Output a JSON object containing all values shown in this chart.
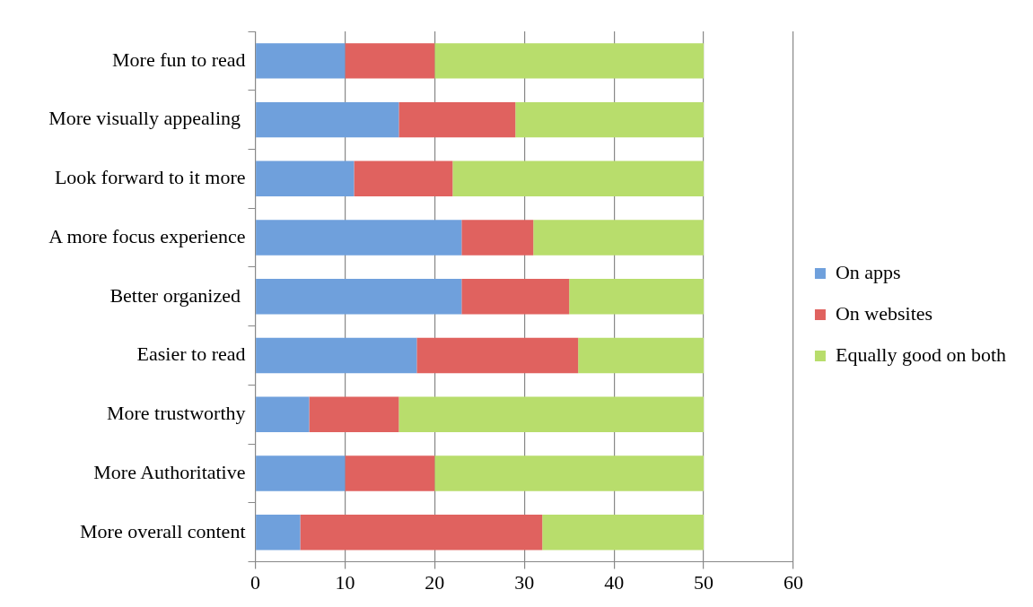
{
  "chart_data": {
    "type": "bar",
    "orientation": "horizontal",
    "stacked": true,
    "categories": [
      "More fun to read",
      "More visually appealing ",
      "Look forward to it more",
      "A more focus experience",
      "Better organized ",
      "Easier to read",
      "More trustworthy",
      "More Authoritative",
      "More overall content"
    ],
    "series": [
      {
        "name": "On apps",
        "color": "#6fa0dc",
        "values": [
          10,
          16,
          11,
          23,
          23,
          18,
          6,
          10,
          5
        ]
      },
      {
        "name": "On websites",
        "color": "#e0625f",
        "values": [
          10,
          13,
          11,
          8,
          12,
          18,
          10,
          10,
          27
        ]
      },
      {
        "name": "Equally good on both",
        "color": "#b8dd6c",
        "values": [
          30,
          21,
          28,
          19,
          15,
          14,
          34,
          30,
          18
        ]
      }
    ],
    "xlim": [
      0,
      60
    ],
    "xticks": [
      0,
      10,
      20,
      30,
      40,
      50,
      60
    ],
    "grid": "x",
    "legend": "right"
  }
}
